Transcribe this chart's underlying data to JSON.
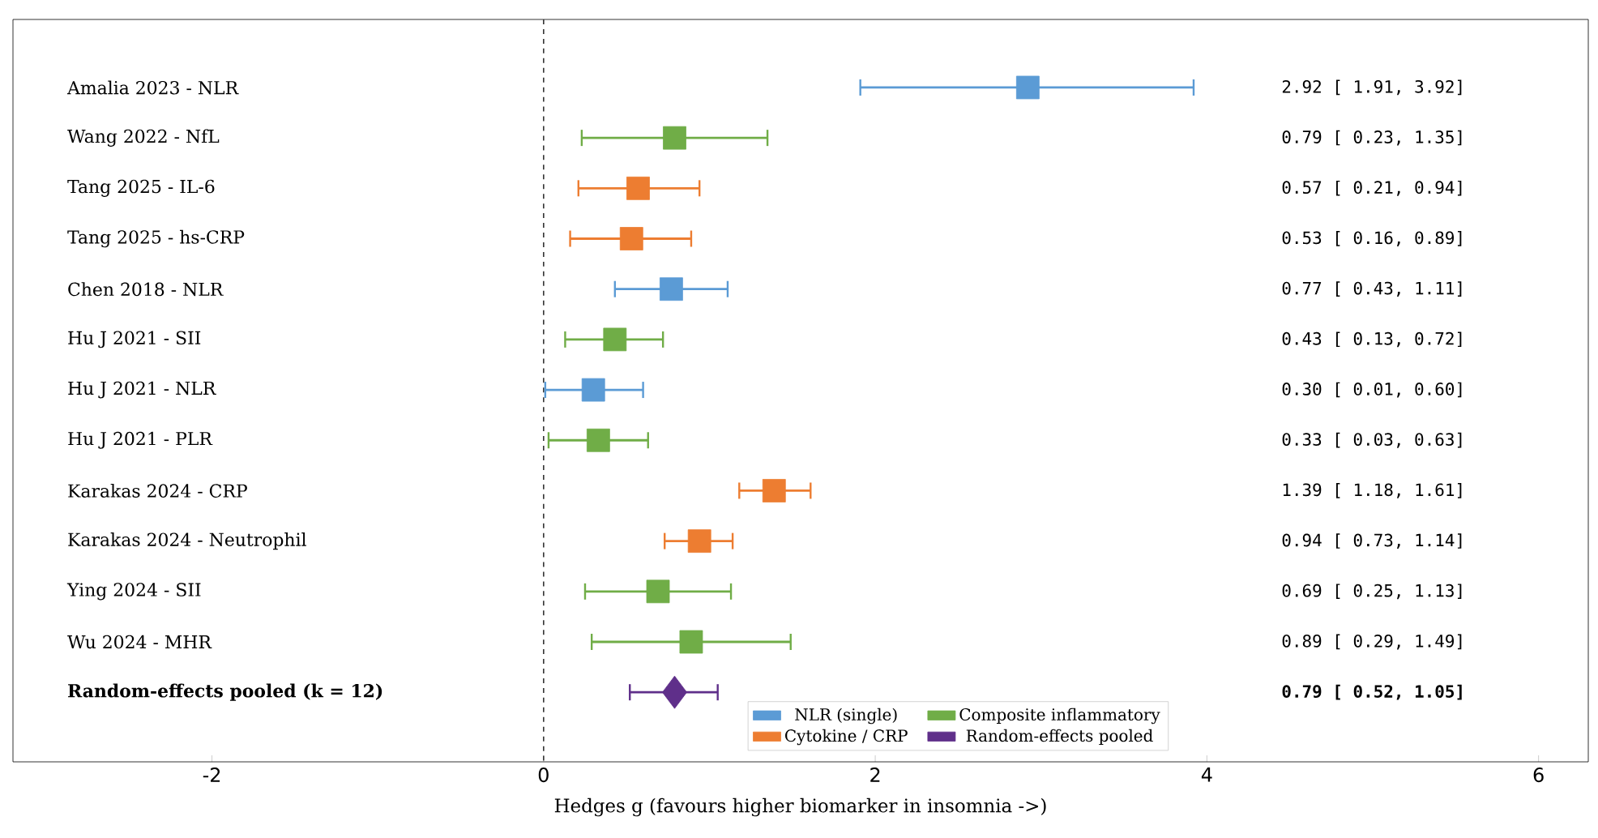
{
  "chart_data": {
    "type": "scatter",
    "orientation": "horizontal",
    "categories": [
      "Amalia 2023 - NLR",
      "Wang 2022 - NfL",
      "Tang 2025 - IL-6",
      "Tang 2025 - hs-CRP",
      "Chen 2018 - NLR",
      "Hu J 2021 - SII",
      "Hu J 2021 - NLR",
      "Hu J 2021 - PLR",
      "Karakas 2024 - CRP",
      "Karakas 2024 - Neutrophil",
      "Ying 2024 - SII",
      "Wu 2024 - MHR",
      "**Random-effects pooled (k = 12)**"
    ],
    "xlabel": "Hedges g (favours higher biomarker in insomnia ->)",
    "xlim": [
      -3.2,
      6.3
    ],
    "xticks": [
      -2,
      0,
      2,
      4,
      6
    ],
    "ref_lines": [
      {
        "axis": "x",
        "value": 0,
        "line_style": "dashed",
        "color": "#333333"
      }
    ],
    "legend": "bottom right",
    "marker": "square",
    "annotations": [
      "2.92 [ 1.91, 3.92]",
      "0.79 [ 0.23, 1.35]",
      "0.57 [ 0.21, 0.94]",
      "0.53 [ 0.16, 0.89]",
      "0.77 [ 0.43, 1.11]",
      "0.43 [ 0.13, 0.72]",
      "0.30 [ 0.01, 0.60]",
      "0.33 [ 0.03, 0.63]",
      "1.39 [ 1.18, 1.61]",
      "0.94 [ 0.73, 1.14]",
      "0.69 [ 0.25, 1.13]",
      "0.89 [ 0.29, 1.49]",
      "**0.79 [ 0.52, 1.05]**"
    ],
    "series": [
      {
        "name": "NLR (single)",
        "color": "#5b9bd5",
        "values": [
          2.92,
          null,
          null,
          null,
          0.77,
          null,
          0.3,
          null,
          null,
          null,
          null,
          null,
          null
        ],
        "errors": [
          [
            1.91,
            3.92
          ],
          null,
          null,
          null,
          [
            0.43,
            1.11
          ],
          null,
          [
            0.01,
            0.6
          ],
          null,
          null,
          null,
          null,
          null,
          null
        ]
      },
      {
        "name": "Composite inflammatory",
        "color": "#70ad47",
        "values": [
          null,
          0.79,
          null,
          null,
          null,
          0.43,
          null,
          0.33,
          null,
          null,
          0.69,
          0.89,
          null
        ],
        "errors": [
          null,
          [
            0.23,
            1.35
          ],
          null,
          null,
          null,
          [
            0.13,
            0.72
          ],
          null,
          [
            0.03,
            0.63
          ],
          null,
          null,
          [
            0.25,
            1.13
          ],
          [
            0.29,
            1.49
          ],
          null
        ]
      },
      {
        "name": "Cytokine / CRP",
        "color": "#ed7d31",
        "values": [
          null,
          null,
          0.57,
          0.53,
          null,
          null,
          null,
          null,
          1.39,
          0.94,
          null,
          null,
          null
        ],
        "errors": [
          null,
          null,
          [
            0.21,
            0.94
          ],
          [
            0.16,
            0.89
          ],
          null,
          null,
          null,
          null,
          [
            1.18,
            1.61
          ],
          [
            0.73,
            1.14
          ],
          null,
          null,
          null
        ]
      },
      {
        "name": "Random-effects pooled",
        "color": "#5f2f8a",
        "marker": "diamond",
        "values": [
          null,
          null,
          null,
          null,
          null,
          null,
          null,
          null,
          null,
          null,
          null,
          null,
          0.79
        ],
        "errors": [
          null,
          null,
          null,
          null,
          null,
          null,
          null,
          null,
          null,
          null,
          null,
          null,
          [
            0.52,
            1.05
          ]
        ]
      }
    ]
  }
}
